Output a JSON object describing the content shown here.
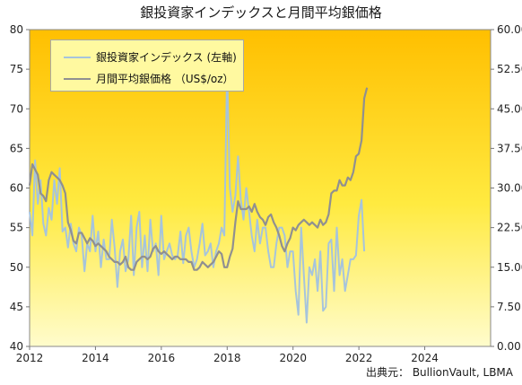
{
  "chart_data": {
    "type": "line",
    "title": "銀投資家インデックスと月間平均銀価格",
    "source": "出典元： BullionVault, LBMA",
    "x_ticks": [
      "2012",
      "2014",
      "2016",
      "2018",
      "2020",
      "2022",
      "2024"
    ],
    "x_range": [
      2012,
      2026
    ],
    "y_left": {
      "range": [
        40,
        80
      ],
      "ticks": [
        "40",
        "45",
        "50",
        "55",
        "60",
        "65",
        "70",
        "75",
        "80"
      ]
    },
    "y_right": {
      "range": [
        0,
        60
      ],
      "ticks": [
        "0.00",
        "7.50",
        "15.00",
        "22.50",
        "30.00",
        "37.50",
        "45.00",
        "52.50",
        "60.00"
      ]
    },
    "grid": false,
    "legend_position": "top-left",
    "series": [
      {
        "name": "銀投資家インデックス (左軸)",
        "axis": "left",
        "color": "#a6c4dc",
        "start": 2012.0,
        "step": 0.0833,
        "values": [
          57,
          54,
          63.5,
          58,
          61,
          55.5,
          54,
          57.5,
          56,
          61,
          58,
          62.5,
          54.5,
          55,
          52.5,
          55.5,
          53,
          52,
          55,
          54,
          49.5,
          53,
          52,
          56.5,
          52,
          54.5,
          50,
          53.5,
          51,
          51,
          56,
          52.5,
          47.5,
          52,
          53.5,
          49.5,
          51,
          56.5,
          49,
          55,
          57,
          50,
          54,
          49.5,
          56,
          52,
          53,
          49,
          56.5,
          51,
          52,
          53,
          51.5,
          51,
          51.5,
          54.5,
          50.5,
          54,
          55,
          52,
          50,
          51,
          53,
          55.5,
          51.5,
          52,
          53,
          50,
          52,
          53,
          55,
          54,
          75,
          60,
          57,
          59,
          64,
          58.5,
          56,
          60,
          57,
          54,
          52,
          56,
          53,
          55,
          55,
          52,
          50,
          50,
          53,
          55,
          55,
          54,
          50,
          52,
          52,
          47,
          44,
          55,
          49,
          43,
          50,
          49,
          51,
          47,
          52,
          44.5,
          45,
          53,
          53.5,
          47,
          55,
          49,
          51,
          47,
          49,
          51,
          51,
          51.5,
          56.5,
          58.5,
          52
        ]
      },
      {
        "name": "月間平均銀価格 （US$/oz）",
        "axis": "right",
        "color": "#909090",
        "start": 2012.0,
        "step": 0.0833,
        "values": [
          30.5,
          34.5,
          33.5,
          32.5,
          29,
          28.5,
          27.5,
          31.5,
          33,
          32.5,
          32,
          31.5,
          30.5,
          29,
          23.5,
          22,
          20,
          19.5,
          21.5,
          21.5,
          20.5,
          19.5,
          20.5,
          20,
          19,
          19.5,
          19,
          18.5,
          18,
          17,
          16.5,
          16,
          16,
          15.5,
          16,
          17,
          15,
          14.5,
          14.5,
          16,
          16.5,
          17,
          17,
          16.5,
          17,
          18.5,
          19,
          18,
          17.5,
          18,
          17.5,
          17,
          16.5,
          17,
          17,
          16.5,
          16.5,
          16.5,
          16,
          16,
          14.5,
          14.5,
          15,
          16,
          15.5,
          15,
          15.5,
          16,
          17,
          18,
          17.5,
          15,
          15,
          17,
          18.5,
          23.5,
          27.5,
          26,
          26,
          26,
          26.5,
          25.5,
          27,
          25.5,
          24.5,
          24,
          23,
          24.5,
          25,
          23.5,
          22.5,
          21,
          19,
          18,
          19.5,
          20.5,
          22.5,
          22,
          23,
          23.5,
          24,
          23.5,
          23,
          23.5,
          23,
          22.5,
          24,
          23,
          23.5,
          25,
          29,
          29.5,
          29.5,
          31.5,
          30.5,
          30.5,
          32,
          31.5,
          33,
          36,
          36.5,
          39,
          47,
          49
        ]
      }
    ]
  }
}
